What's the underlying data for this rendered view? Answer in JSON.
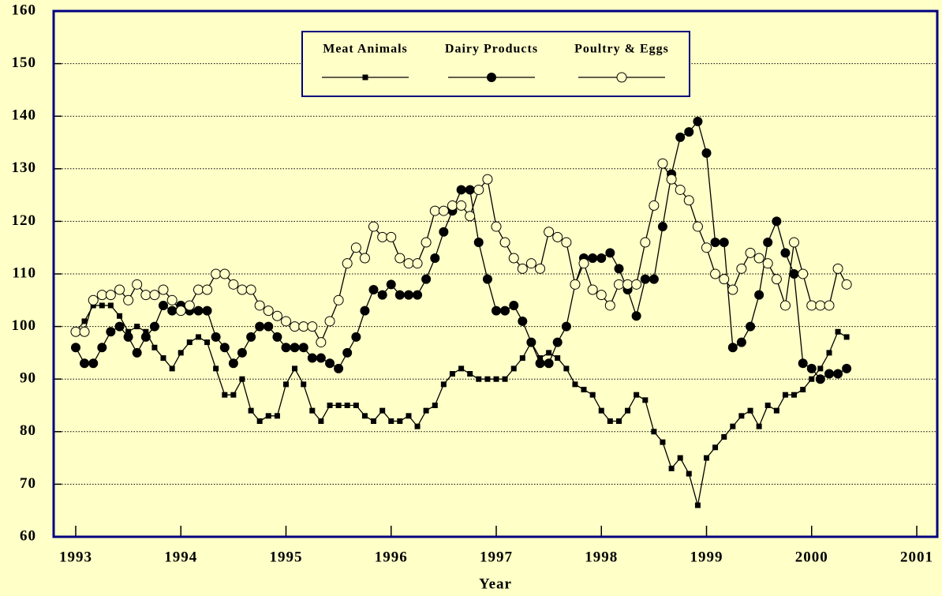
{
  "chart_data": {
    "type": "line",
    "x_label": "Year",
    "x": [
      1993,
      1993.083,
      1993.167,
      1993.25,
      1993.333,
      1993.417,
      1993.5,
      1993.583,
      1993.667,
      1993.75,
      1993.833,
      1993.917,
      1994,
      1994.083,
      1994.167,
      1994.25,
      1994.333,
      1994.417,
      1994.5,
      1994.583,
      1994.667,
      1994.75,
      1994.833,
      1994.917,
      1995,
      1995.083,
      1995.167,
      1995.25,
      1995.333,
      1995.417,
      1995.5,
      1995.583,
      1995.667,
      1995.75,
      1995.833,
      1995.917,
      1996,
      1996.083,
      1996.167,
      1996.25,
      1996.333,
      1996.417,
      1996.5,
      1996.583,
      1996.667,
      1996.75,
      1996.833,
      1996.917,
      1997,
      1997.083,
      1997.167,
      1997.25,
      1997.333,
      1997.417,
      1997.5,
      1997.583,
      1997.667,
      1997.75,
      1997.833,
      1997.917,
      1998,
      1998.083,
      1998.167,
      1998.25,
      1998.333,
      1998.417,
      1998.5,
      1998.583,
      1998.667,
      1998.75,
      1998.833,
      1998.917,
      1999,
      1999.083,
      1999.167,
      1999.25,
      1999.333,
      1999.417,
      1999.5,
      1999.583,
      1999.667,
      1999.75,
      1999.833,
      1999.917,
      2000,
      2000.083,
      2000.167,
      2000.25,
      2000.333
    ],
    "series": [
      {
        "name": "Meat Animals",
        "color": "#000000",
        "marker": "square",
        "values": [
          99,
          101,
          104,
          104,
          104,
          102,
          99,
          100,
          99,
          96,
          94,
          92,
          95,
          97,
          98,
          97,
          92,
          87,
          87,
          90,
          84,
          82,
          83,
          83,
          89,
          92,
          89,
          84,
          82,
          85,
          85,
          85,
          85,
          83,
          82,
          84,
          82,
          82,
          83,
          81,
          84,
          85,
          89,
          91,
          92,
          91,
          90,
          90,
          90,
          90,
          92,
          94,
          97,
          94,
          95,
          94,
          92,
          89,
          88,
          87,
          84,
          82,
          82,
          84,
          87,
          86,
          80,
          78,
          73,
          75,
          72,
          66,
          75,
          77,
          79,
          81,
          83,
          84,
          81,
          85,
          84,
          87,
          87,
          88,
          90,
          92,
          95,
          99,
          98
        ]
      },
      {
        "name": "Dairy Products",
        "color": "#000000",
        "marker": "filled-circle",
        "values": [
          96,
          93,
          93,
          96,
          99,
          100,
          98,
          95,
          98,
          100,
          104,
          103,
          104,
          103,
          103,
          103,
          98,
          96,
          93,
          95,
          98,
          100,
          100,
          98,
          96,
          96,
          96,
          94,
          94,
          93,
          92,
          95,
          98,
          103,
          107,
          106,
          108,
          106,
          106,
          106,
          109,
          113,
          118,
          122,
          126,
          126,
          116,
          109,
          103,
          103,
          104,
          101,
          97,
          93,
          93,
          97,
          100,
          108,
          113,
          113,
          113,
          114,
          111,
          107,
          102,
          109,
          109,
          119,
          129,
          136,
          137,
          139,
          133,
          116,
          116,
          96,
          97,
          100,
          106,
          116,
          120,
          114,
          110,
          93,
          92,
          90,
          91,
          91,
          92
        ]
      },
      {
        "name": "Poultry & Eggs",
        "color": "#000000",
        "marker": "open-circle",
        "values": [
          99,
          99,
          105,
          106,
          106,
          107,
          105,
          108,
          106,
          106,
          107,
          105,
          103,
          104,
          107,
          107,
          110,
          110,
          108,
          107,
          107,
          104,
          103,
          102,
          101,
          100,
          100,
          100,
          97,
          101,
          105,
          112,
          115,
          113,
          119,
          117,
          117,
          113,
          112,
          112,
          116,
          122,
          122,
          123,
          123,
          121,
          126,
          128,
          119,
          116,
          113,
          111,
          112,
          111,
          118,
          117,
          116,
          108,
          112,
          107,
          106,
          104,
          108,
          108,
          108,
          116,
          123,
          131,
          128,
          126,
          124,
          119,
          115,
          110,
          109,
          107,
          111,
          114,
          113,
          112,
          109,
          104,
          116,
          110,
          104,
          104,
          104,
          111,
          108
        ]
      }
    ],
    "xlim": [
      1992.79,
      2001.195
    ],
    "xticks": [
      1993,
      1994,
      1995,
      1996,
      1997,
      1998,
      1999,
      2000,
      2001
    ],
    "ylim": [
      60,
      160
    ],
    "yticks": [
      60,
      70,
      80,
      90,
      100,
      110,
      120,
      130,
      140,
      150,
      160
    ],
    "grid": true,
    "background": "#ffffc8",
    "frame_color": "#000080"
  }
}
